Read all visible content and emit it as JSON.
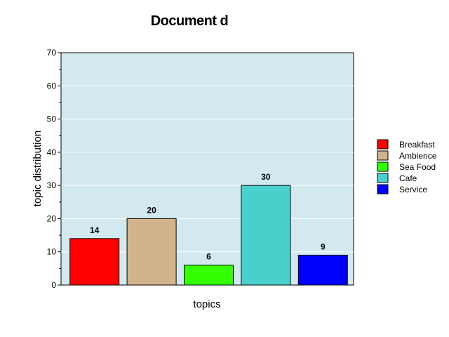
{
  "chart_data": {
    "type": "bar",
    "title": "Document d",
    "xlabel": "topics",
    "ylabel": "topic distribution",
    "categories": [
      "Breakfast",
      "Ambience",
      "Sea Food",
      "Cafe",
      "Service"
    ],
    "values": [
      14,
      20,
      6,
      30,
      9
    ],
    "colors": [
      "#ff0000",
      "#d2b48c",
      "#33ff00",
      "#48d1cc",
      "#0000ff"
    ],
    "ylim": [
      0,
      70
    ],
    "yticks": [
      0,
      10,
      20,
      30,
      40,
      50,
      60,
      70
    ],
    "grid": true,
    "legend_position": "right",
    "plot_background": "#d2e9f0"
  }
}
